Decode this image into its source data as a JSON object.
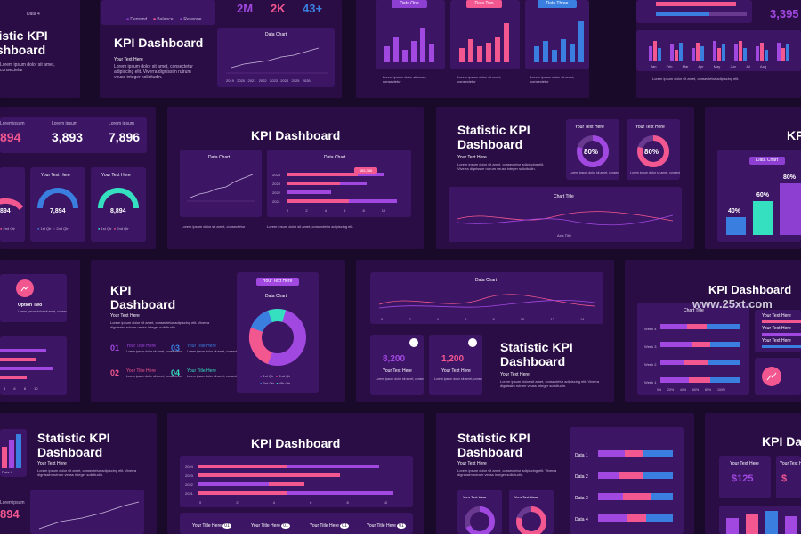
{
  "colors": {
    "bg": "#1a0a2a",
    "slide": "#2a0d45",
    "card": "#3d1565",
    "pink": "#f2578f",
    "purple": "#a048e0",
    "blue": "#3a7fe0",
    "teal": "#35e0c0",
    "violet": "#8c3fd1"
  },
  "watermark": "www.25xt.com",
  "titles": {
    "kpi": "KPI Dashboard",
    "kpi_short": "KPI",
    "stat": "Statistic KPI Dashboard",
    "stat_line1": "Statistic KPI",
    "stat_line2": "Dashboard",
    "kpi_line1": "KPI",
    "kpi_line2": "Dashboard",
    "frag_top": "Statistic KPI",
    "frag_bot": "Dashboard"
  },
  "texts": {
    "your_text": "Your Text Here",
    "lorem": "Lorem ipsum dolor sit amet, consectetur adipiscing elit. Viverra dignissim rutrum veuss integer solicitudin.",
    "lorem_short": "Lorem ipsum dolor sit amet, consectetur adipiscing elit.",
    "lorem_tiny": "Lorem ipsum dolor sit amet, consectetur",
    "data_chart": "Data Chart",
    "chart_title": "Chart Title",
    "axis_title": "Axis Title",
    "your_title": "Your Title Here",
    "option_two": "Option Two",
    "lorem_ipsum": "Lorem ipsum",
    "lorem_ipsum_frag": "Loremipsum",
    "data_four": "Data 4"
  },
  "top_stats": {
    "a": "2M",
    "b": "2K",
    "c": "43+"
  },
  "legend_top": {
    "demand": "Demand",
    "balance": "Balance",
    "revenue": "Revenue"
  },
  "data_tabs": {
    "one": "Data One",
    "two": "Data Two",
    "three": "Data Three"
  },
  "counters": {
    "a": "894",
    "b": "3,893",
    "c": "7,896"
  },
  "gauges": {
    "g1": "894",
    "g2": "7,894",
    "g3": "8,894",
    "q1": "1st Qtr",
    "q2": "2nd Qtr"
  },
  "donut_pct": {
    "a": "80%",
    "b": "80%"
  },
  "bars_pct": {
    "a": "40%",
    "b": "60%",
    "c": "80%"
  },
  "big_num": {
    "right": "3,395"
  },
  "mini_cards": {
    "a": "8,200",
    "b": "1,200"
  },
  "steps": {
    "s1": "01",
    "s2": "02",
    "s3": "03",
    "s4": "04"
  },
  "quarters": {
    "q1": "1st Qtr",
    "q2": "2nd Qtr",
    "q3": "3rd Qtr",
    "q4": "4th Qtr"
  },
  "weeks": {
    "w1": "Week 4",
    "w2": "Week 3",
    "w3": "Week 2",
    "w4": "Week 1"
  },
  "pct_axis": [
    "0%",
    "20%",
    "40%",
    "60%",
    "80%",
    "100%"
  ],
  "data_rows": {
    "d1": "Data 1",
    "d2": "Data 2",
    "d3": "Data 3",
    "d4": "Data 4"
  },
  "money": {
    "a": "$125",
    "b": "$"
  },
  "years": [
    "2024",
    "2023",
    "2022",
    "2021"
  ],
  "years_top": [
    "2019",
    "2020",
    "2021",
    "2022",
    "2023",
    "2024",
    "2025",
    "2026"
  ],
  "months": [
    "JAN",
    "FEB",
    "MAR",
    "APR",
    "MAY"
  ],
  "months_full": [
    "Jan",
    "Feb",
    "Mar",
    "Apr",
    "May",
    "Jun",
    "Jul",
    "Aug"
  ],
  "axis_ten": [
    "0",
    "2",
    "4",
    "6",
    "8",
    "10"
  ],
  "axis_fourteen": [
    "0",
    "2",
    "4",
    "6",
    "8",
    "10",
    "12",
    "14"
  ],
  "hbar_value": "$85,386",
  "frag_num": "894",
  "frag_num2": "894"
}
